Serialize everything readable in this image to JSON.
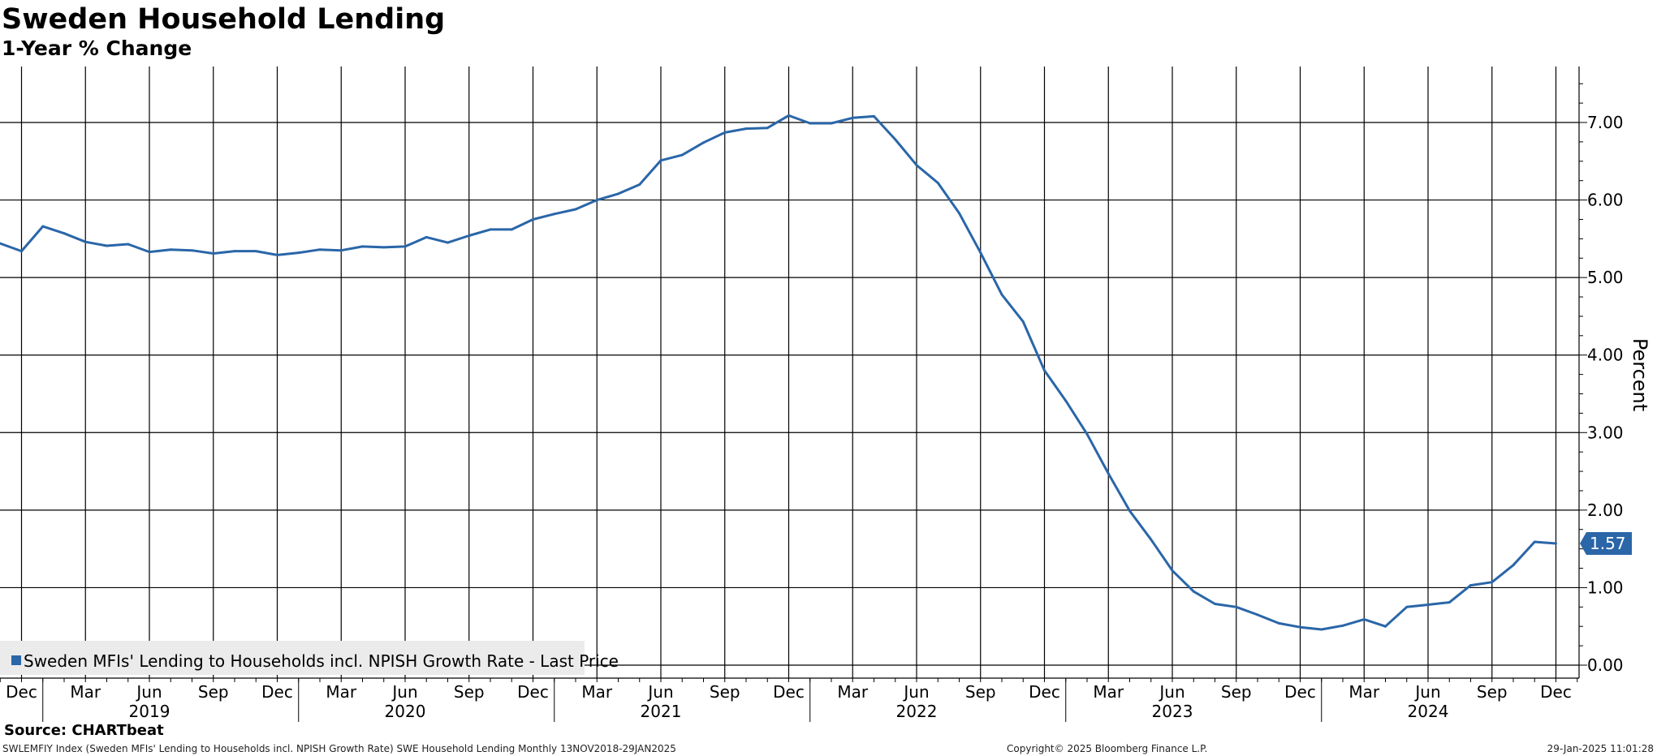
{
  "title": "Sweden Household Lending",
  "subtitle": "1-Year % Change",
  "source": "Source: CHARTbeat",
  "footer": {
    "left": "SWLEMFIY Index (Sweden MFIs' Lending to Households incl. NPISH Growth Rate) SWE Household Lending  Monthly 13NOV2018-29JAN2025",
    "middle": "Copyright© 2025 Bloomberg Finance L.P.",
    "right": "29-Jan-2025 11:01:28"
  },
  "colors": {
    "series": "#2a66a8",
    "grid": "#000000",
    "legend_bg": "#ebebeb",
    "last_badge_bg": "#2a66a8",
    "last_badge_text": "#ffffff"
  },
  "chart_data": {
    "type": "line",
    "title": "Sweden Household Lending",
    "subtitle": "1-Year % Change",
    "ylabel": "Percent",
    "ylim": [
      0,
      7.5
    ],
    "y_ticks": [
      0,
      1,
      2,
      3,
      4,
      5,
      6,
      7
    ],
    "y_tick_labels": [
      "0.00",
      "1.00",
      "2.00",
      "3.00",
      "4.00",
      "5.00",
      "6.00",
      "7.00"
    ],
    "y_axis_position": "right",
    "grid": true,
    "legend_position": "bottom-left",
    "x_range": [
      "2018-11",
      "2025-01"
    ],
    "month_ticks": [
      "2018-12",
      "2019-03",
      "2019-06",
      "2019-09",
      "2019-12",
      "2020-03",
      "2020-06",
      "2020-09",
      "2020-12",
      "2021-03",
      "2021-06",
      "2021-09",
      "2021-12",
      "2022-03",
      "2022-06",
      "2022-09",
      "2022-12",
      "2023-03",
      "2023-06",
      "2023-09",
      "2023-12",
      "2024-03",
      "2024-06",
      "2024-09",
      "2024-12"
    ],
    "month_tick_labels": [
      "Dec",
      "Mar",
      "Jun",
      "Sep",
      "Dec",
      "Mar",
      "Jun",
      "Sep",
      "Dec",
      "Mar",
      "Jun",
      "Sep",
      "Dec",
      "Mar",
      "Jun",
      "Sep",
      "Dec",
      "Mar",
      "Jun",
      "Sep",
      "Dec",
      "Mar",
      "Jun",
      "Sep",
      "Dec"
    ],
    "year_labels": [
      {
        "label": "2019",
        "at": "2019-06"
      },
      {
        "label": "2020",
        "at": "2020-06"
      },
      {
        "label": "2021",
        "at": "2021-06"
      },
      {
        "label": "2022",
        "at": "2022-06"
      },
      {
        "label": "2023",
        "at": "2023-06"
      },
      {
        "label": "2024",
        "at": "2024-06"
      }
    ],
    "year_separators": [
      "2018-12-31",
      "2019-12-31",
      "2020-12-31",
      "2021-12-31",
      "2022-12-31",
      "2023-12-31"
    ],
    "series": [
      {
        "name": "Sweden MFIs' Lending to Households incl. NPISH Growth Rate - Last Price",
        "last_value_label": "1.57",
        "x": [
          "2018-11",
          "2018-12",
          "2019-01",
          "2019-02",
          "2019-03",
          "2019-04",
          "2019-05",
          "2019-06",
          "2019-07",
          "2019-08",
          "2019-09",
          "2019-10",
          "2019-11",
          "2019-12",
          "2020-01",
          "2020-02",
          "2020-03",
          "2020-04",
          "2020-05",
          "2020-06",
          "2020-07",
          "2020-08",
          "2020-09",
          "2020-10",
          "2020-11",
          "2020-12",
          "2021-01",
          "2021-02",
          "2021-03",
          "2021-04",
          "2021-05",
          "2021-06",
          "2021-07",
          "2021-08",
          "2021-09",
          "2021-10",
          "2021-11",
          "2021-12",
          "2022-01",
          "2022-02",
          "2022-03",
          "2022-04",
          "2022-05",
          "2022-06",
          "2022-07",
          "2022-08",
          "2022-09",
          "2022-10",
          "2022-11",
          "2022-12",
          "2023-01",
          "2023-02",
          "2023-03",
          "2023-04",
          "2023-05",
          "2023-06",
          "2023-07",
          "2023-08",
          "2023-09",
          "2023-10",
          "2023-11",
          "2023-12",
          "2024-01",
          "2024-02",
          "2024-03",
          "2024-04",
          "2024-05",
          "2024-06",
          "2024-07",
          "2024-08",
          "2024-09",
          "2024-10",
          "2024-11",
          "2024-12"
        ],
        "y": [
          5.44,
          5.34,
          5.66,
          5.57,
          5.46,
          5.41,
          5.43,
          5.33,
          5.36,
          5.35,
          5.31,
          5.34,
          5.34,
          5.29,
          5.32,
          5.36,
          5.35,
          5.4,
          5.39,
          5.4,
          5.52,
          5.45,
          5.54,
          5.62,
          5.62,
          5.75,
          5.82,
          5.88,
          6.0,
          6.08,
          6.2,
          6.51,
          6.58,
          6.74,
          6.87,
          6.92,
          6.93,
          7.09,
          6.99,
          6.99,
          7.06,
          7.08,
          6.78,
          6.45,
          6.22,
          5.83,
          5.32,
          4.78,
          4.43,
          3.8,
          3.41,
          2.98,
          2.47,
          1.99,
          1.62,
          1.22,
          0.95,
          0.79,
          0.75,
          0.65,
          0.54,
          0.49,
          0.46,
          0.51,
          0.59,
          0.5,
          0.75,
          0.78,
          0.81,
          1.03,
          1.07,
          1.29,
          1.59,
          1.57
        ]
      }
    ]
  }
}
